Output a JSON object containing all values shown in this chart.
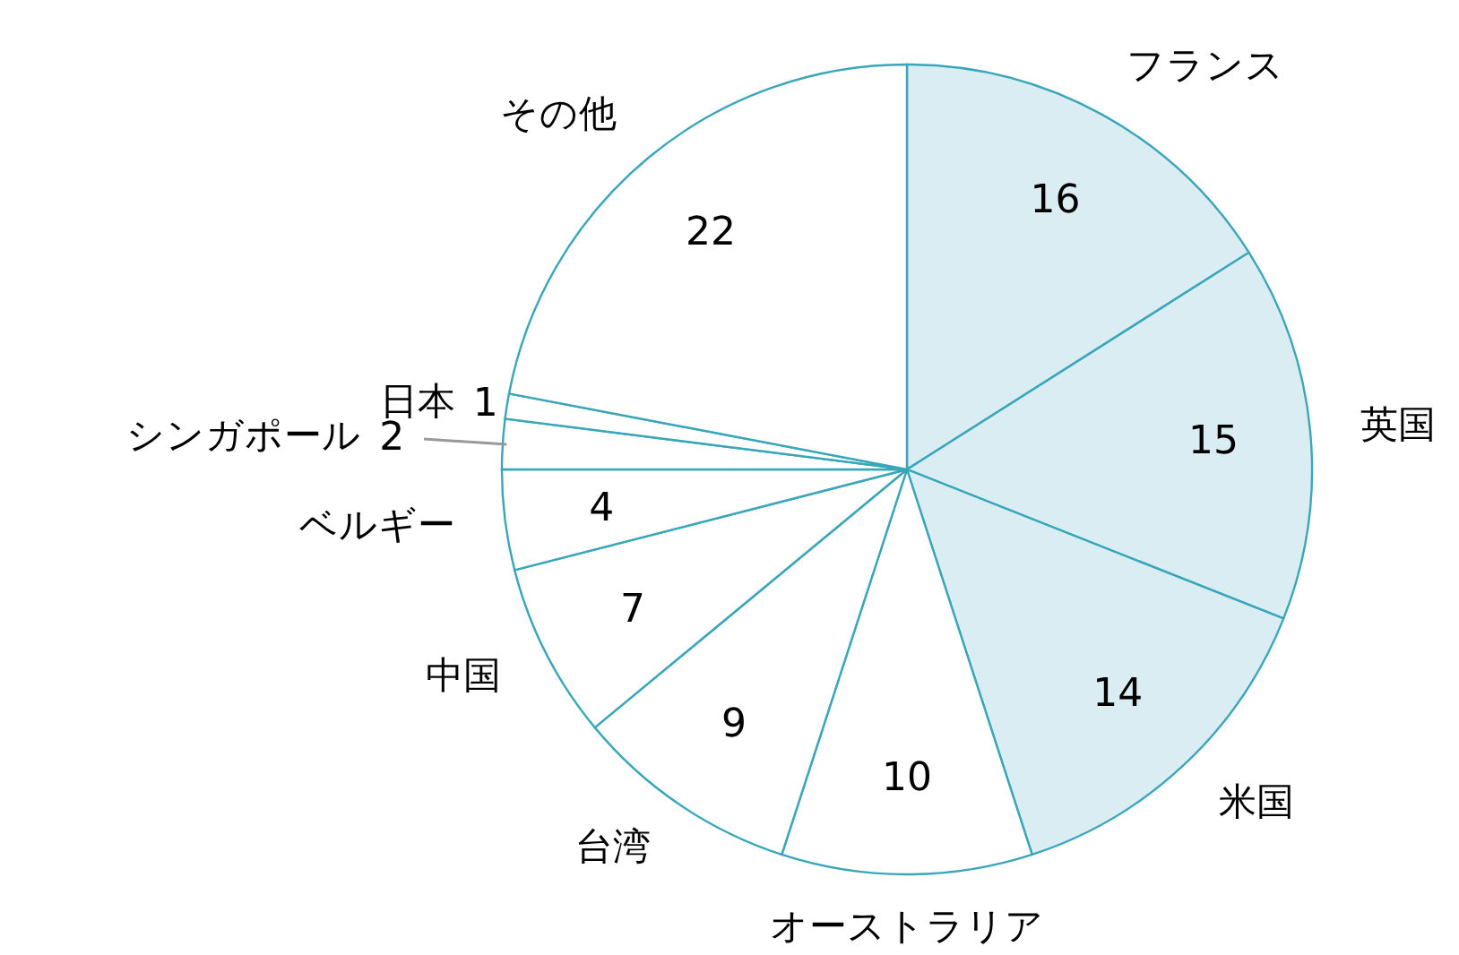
{
  "chart_data": {
    "type": "pie",
    "categories": [
      "フランス",
      "英国",
      "米国",
      "オーストラリア",
      "台湾",
      "中国",
      "ベルギー",
      "シンガポール",
      "日本",
      "その他"
    ],
    "values": [
      16,
      15,
      14,
      10,
      9,
      7,
      4,
      2,
      1,
      22
    ],
    "colors": [
      "#daedf3",
      "#daedf3",
      "#daedf3",
      "#ffffff",
      "#ffffff",
      "#ffffff",
      "#ffffff",
      "#ffffff",
      "#ffffff",
      "#ffffff"
    ],
    "data_labels": true
  }
}
